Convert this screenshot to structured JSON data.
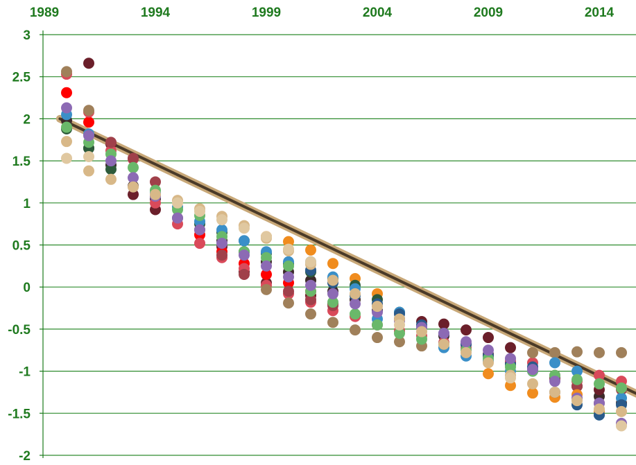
{
  "chart_data": {
    "type": "scatter",
    "title": "",
    "xlabel": "",
    "ylabel": "",
    "xlim": [
      1989,
      2016
    ],
    "ylim": [
      -2,
      3
    ],
    "x_ticks": [
      1989,
      1994,
      1999,
      2004,
      2009,
      2014
    ],
    "x_tick_labels": [
      "1989",
      "1994",
      "1999",
      "2004",
      "2009",
      "2014"
    ],
    "y_ticks": [
      3,
      2.5,
      2,
      1.5,
      1,
      0.5,
      0,
      -0.5,
      -1,
      -1.5,
      -2
    ],
    "y_tick_labels": [
      "3",
      "2.5",
      "2",
      "1.5",
      "1",
      "0.5",
      "0",
      "-0.5",
      "-1",
      "-1.5",
      "-2"
    ],
    "x_axis_position": "top",
    "grid": "horizontal",
    "legend": "none",
    "colors": {
      "axis": "#1a7a1a",
      "grid": "#2e8b2e",
      "tick_text": "#1f7a1f",
      "trend_outer": "#c8a878",
      "trend_inner": "#4a3a28"
    },
    "trendline": {
      "x": [
        1989.7,
        2015.7
      ],
      "y": [
        2.0,
        -1.27
      ]
    },
    "series": [
      {
        "color": "#3d2a2a",
        "x": [
          1990,
          1991,
          1992,
          1993,
          1994,
          1995,
          1996,
          1997,
          1998,
          1999,
          2000,
          2001,
          2002,
          2003,
          2004,
          2005,
          2006,
          2007,
          2008,
          2009,
          2010,
          2011,
          2012,
          2013,
          2014,
          2015
        ],
        "y": [
          1.98,
          1.65,
          1.45,
          1.2,
          1.05,
          0.82,
          0.68,
          0.55,
          0.42,
          0.3,
          0.18,
          0.08,
          -0.05,
          -0.15,
          -0.28,
          -0.38,
          -0.48,
          -0.58,
          -0.68,
          -0.8,
          -0.9,
          -0.98,
          -1.08,
          -1.18,
          -1.3,
          -1.38
        ]
      },
      {
        "color": "#6b1f2a",
        "x": [
          1991,
          1992,
          1993,
          1994,
          1997,
          1998,
          1999,
          2001,
          2002,
          2006,
          2007,
          2008,
          2009,
          2010,
          2014
        ],
        "y": [
          2.66,
          1.7,
          1.1,
          0.92,
          0.48,
          0.18,
          0.05,
          -0.1,
          -0.2,
          -0.41,
          -0.44,
          -0.51,
          -0.6,
          -0.72,
          -1.22
        ]
      },
      {
        "color": "#ff0000",
        "x": [
          1990,
          1991,
          1996,
          1997,
          1998,
          1999,
          2000,
          2001
        ],
        "y": [
          2.31,
          1.96,
          0.62,
          0.42,
          0.28,
          0.15,
          0.05,
          -0.05
        ]
      },
      {
        "color": "#d94a5a",
        "x": [
          1990,
          1991,
          1992,
          1993,
          1994,
          1995,
          1996,
          1997,
          1998,
          1999,
          2000,
          2001,
          2002,
          2003,
          2004,
          2005,
          2006,
          2007,
          2008,
          2009,
          2010,
          2011,
          2012,
          2013,
          2014,
          2015
        ],
        "y": [
          2.53,
          2.08,
          1.62,
          1.52,
          1.0,
          0.75,
          0.52,
          0.35,
          0.22,
          0.02,
          -0.08,
          -0.18,
          -0.28,
          -0.35,
          -0.45,
          -0.52,
          -0.58,
          -0.66,
          -0.72,
          -0.82,
          -0.88,
          -0.9,
          -1.05,
          -1.12,
          -1.05,
          -1.12
        ]
      },
      {
        "color": "#a0404a",
        "x": [
          1992,
          1993,
          1994,
          1997,
          1998,
          2000,
          2001,
          2002,
          2011,
          2012,
          2013,
          2014,
          2015
        ],
        "y": [
          1.72,
          1.53,
          1.25,
          0.38,
          0.15,
          -0.05,
          -0.15,
          -0.22,
          -0.98,
          -1.1,
          -1.18,
          -1.38,
          -1.22
        ]
      },
      {
        "color": "#a0805a",
        "x": [
          1990,
          1991,
          1999,
          2000,
          2001,
          2002,
          2003,
          2004,
          2005,
          2006,
          2011,
          2012,
          2013,
          2014,
          2015
        ],
        "y": [
          2.56,
          2.1,
          -0.03,
          -0.19,
          -0.32,
          -0.42,
          -0.51,
          -0.6,
          -0.65,
          -0.7,
          -0.78,
          -0.78,
          -0.77,
          -0.78,
          -0.78
        ]
      },
      {
        "color": "#f08c1e",
        "x": [
          1999,
          2000,
          2001,
          2002,
          2003,
          2004,
          2009,
          2010,
          2011,
          2012,
          2013,
          2014
        ],
        "y": [
          0.6,
          0.54,
          0.44,
          0.28,
          0.1,
          -0.08,
          -1.03,
          -1.17,
          -1.26,
          -1.31,
          -1.28,
          -1.48
        ]
      },
      {
        "color": "#2d5a3a",
        "x": [
          1990,
          1991,
          1992,
          1996,
          1997,
          1998,
          1999,
          2000,
          2001,
          2002,
          2003,
          2004,
          2005
        ],
        "y": [
          1.88,
          1.65,
          1.4,
          0.75,
          0.65,
          0.55,
          0.4,
          0.28,
          0.18,
          0.1,
          0.02,
          -0.15,
          -0.3
        ]
      },
      {
        "color": "#3a8fc8",
        "x": [
          1990,
          1991,
          1994,
          1995,
          1996,
          1997,
          1998,
          1999,
          2000,
          2001,
          2002,
          2003,
          2004,
          2005,
          2006,
          2007,
          2008,
          2009,
          2010,
          2011,
          2012,
          2013,
          2014,
          2015
        ],
        "y": [
          2.05,
          1.82,
          1.12,
          0.95,
          0.78,
          0.68,
          0.55,
          0.42,
          0.3,
          0.3,
          0.12,
          -0.02,
          -0.38,
          -0.3,
          -0.48,
          -0.72,
          -0.82,
          -0.88,
          -1.0,
          -1.0,
          -0.9,
          -1.0,
          -1.52,
          -1.32
        ]
      },
      {
        "color": "#2a5a8a",
        "x": [
          2001,
          2002,
          2003,
          2004,
          2005,
          2006,
          2007,
          2008,
          2009,
          2010,
          2011,
          2012,
          2013,
          2014,
          2015
        ],
        "y": [
          0.2,
          0.05,
          -0.1,
          -0.2,
          -0.32,
          -0.45,
          -0.55,
          -0.68,
          -0.82,
          -0.92,
          -0.95,
          -1.25,
          -1.4,
          -1.52,
          -1.4
        ]
      },
      {
        "color": "#6ab86a",
        "x": [
          1990,
          1991,
          1992,
          1993,
          1994,
          1995,
          1996,
          1997,
          1998,
          1999,
          2000,
          2001,
          2002,
          2003,
          2004,
          2005,
          2006,
          2007,
          2008,
          2009,
          2010,
          2011,
          2012,
          2013,
          2014,
          2015
        ],
        "y": [
          1.9,
          1.72,
          1.58,
          1.42,
          1.15,
          0.92,
          0.85,
          0.6,
          0.42,
          0.35,
          0.25,
          -0.05,
          -0.18,
          -0.32,
          -0.45,
          -0.55,
          -0.62,
          -0.68,
          -0.75,
          -0.85,
          -0.95,
          -1.0,
          -1.05,
          -1.1,
          -1.15,
          -1.2
        ]
      },
      {
        "color": "#8c6ab4",
        "x": [
          1990,
          1991,
          1992,
          1993,
          1994,
          1995,
          1996,
          1997,
          1998,
          1999,
          2000,
          2001,
          2002,
          2003,
          2004,
          2005,
          2006,
          2007,
          2008,
          2009,
          2010,
          2011,
          2012,
          2013,
          2014,
          2015
        ],
        "y": [
          2.13,
          1.8,
          1.5,
          1.3,
          1.08,
          0.82,
          0.68,
          0.52,
          0.38,
          0.25,
          0.12,
          0.02,
          -0.08,
          -0.2,
          -0.3,
          -0.4,
          -0.48,
          -0.55,
          -0.65,
          -0.75,
          -0.85,
          -0.98,
          -1.12,
          -1.32,
          -1.38,
          -1.62
        ]
      },
      {
        "color": "#d8b888",
        "x": [
          1990,
          1991,
          1992,
          1993,
          1994,
          1995,
          1996,
          1997,
          1998,
          1999,
          2000,
          2001,
          2002,
          2003,
          2004,
          2005,
          2006,
          2007,
          2008,
          2009,
          2010,
          2011,
          2012,
          2013,
          2014,
          2015
        ],
        "y": [
          1.73,
          1.38,
          1.28,
          1.19,
          1.1,
          1.03,
          0.93,
          0.84,
          0.73,
          0.58,
          0.43,
          0.27,
          0.08,
          -0.08,
          -0.23,
          -0.38,
          -0.53,
          -0.68,
          -0.78,
          -0.9,
          -1.05,
          -1.15,
          -1.25,
          -1.35,
          -1.45,
          -1.48
        ]
      },
      {
        "color": "#e0c8a0",
        "x": [
          1990,
          1991,
          1995,
          1996,
          1997,
          1998,
          1999,
          2000,
          2001,
          2005,
          2010,
          2015
        ],
        "y": [
          1.53,
          1.55,
          1.0,
          0.9,
          0.8,
          0.7,
          0.6,
          0.45,
          0.3,
          -0.45,
          -1.08,
          -1.65
        ]
      }
    ]
  }
}
